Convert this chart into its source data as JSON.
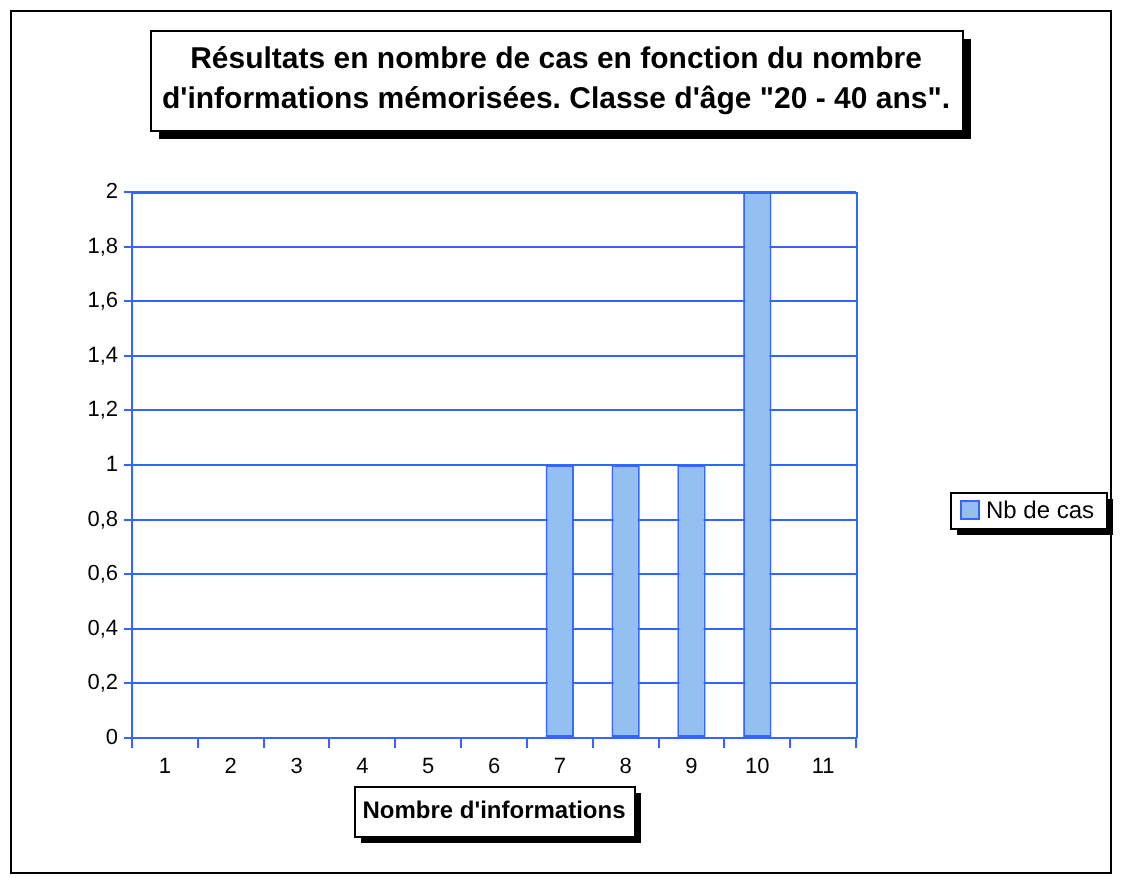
{
  "chart_data": {
    "type": "bar",
    "title": "Résultats en nombre de cas en fonction du nombre d'informations mémorisées. Classe d'âge \"20 - 40 ans\".",
    "xlabel": "Nombre d'informations",
    "categories": [
      "1",
      "2",
      "3",
      "4",
      "5",
      "6",
      "7",
      "8",
      "9",
      "10",
      "11"
    ],
    "series": [
      {
        "name": "Nb de cas",
        "color": "#93c0f0",
        "values": [
          0,
          0,
          0,
          0,
          0,
          0,
          1,
          1,
          1,
          2,
          0
        ]
      }
    ],
    "ylim": [
      0,
      2
    ],
    "yticks": [
      0,
      {
        "value": 0.2,
        "label": "0,2"
      },
      {
        "value": 0.4,
        "label": "0,4"
      },
      {
        "value": 0.6,
        "label": "0,6"
      },
      {
        "value": 0.8,
        "label": "0,8"
      },
      1,
      {
        "value": 1.2,
        "label": "1,2"
      },
      {
        "value": 1.4,
        "label": "1,4"
      },
      {
        "value": 1.6,
        "label": "1,6"
      },
      {
        "value": 1.8,
        "label": "1,8"
      },
      2
    ],
    "grid": "y",
    "legend": "right"
  }
}
